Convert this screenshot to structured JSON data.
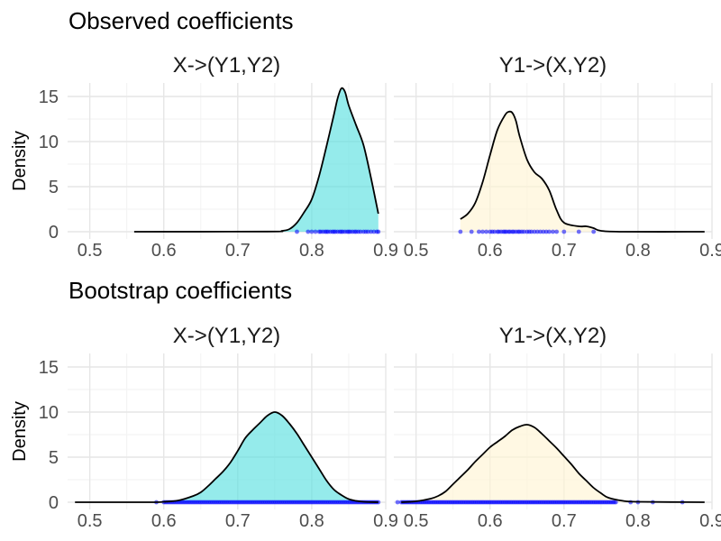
{
  "chart_data": [
    {
      "type": "area",
      "row_title": "Observed coefficients",
      "ylabel": "Density",
      "xlim": [
        0.47,
        0.9
      ],
      "ylim": [
        -0.8,
        16.5
      ],
      "x_ticks": [
        0.5,
        0.6,
        0.7,
        0.8,
        0.9
      ],
      "x_tick_labels": [
        "0.5",
        "0.6",
        "0.7",
        "0.8",
        "0.9"
      ],
      "y_ticks": [
        0,
        5,
        10,
        15
      ],
      "y_tick_labels": [
        "0",
        "5",
        "10",
        "15"
      ],
      "panels": [
        {
          "strip": "X->(Y1,Y2)",
          "fill": "#5ce0e0",
          "line_range": [
            0.56,
            0.89
          ],
          "fill_range": [
            0.76,
            0.89
          ],
          "x": [
            0.56,
            0.74,
            0.76,
            0.77,
            0.78,
            0.79,
            0.8,
            0.81,
            0.82,
            0.83,
            0.835,
            0.84,
            0.845,
            0.85,
            0.86,
            0.87,
            0.88,
            0.89
          ],
          "density": [
            0,
            0.02,
            0.1,
            0.3,
            1.0,
            2.2,
            3.6,
            6.2,
            9.5,
            13.0,
            14.8,
            15.9,
            15.5,
            14.0,
            11.8,
            9.6,
            6.0,
            2.0
          ],
          "rug": [
            0.78,
            0.795,
            0.8,
            0.805,
            0.81,
            0.812,
            0.815,
            0.818,
            0.82,
            0.822,
            0.825,
            0.828,
            0.83,
            0.832,
            0.835,
            0.838,
            0.84,
            0.842,
            0.845,
            0.848,
            0.85,
            0.852,
            0.855,
            0.858,
            0.86,
            0.863,
            0.866,
            0.87,
            0.873,
            0.876,
            0.88,
            0.884,
            0.888,
            0.89
          ]
        },
        {
          "strip": "Y1->(X,Y2)",
          "fill": "#fff5d4",
          "line_range": [
            0.56,
            0.89
          ],
          "fill_range": [
            0.56,
            0.74
          ],
          "x": [
            0.56,
            0.57,
            0.58,
            0.59,
            0.6,
            0.61,
            0.62,
            0.625,
            0.63,
            0.635,
            0.64,
            0.65,
            0.66,
            0.67,
            0.68,
            0.69,
            0.7,
            0.72,
            0.73,
            0.74,
            0.75,
            0.78,
            0.89
          ],
          "density": [
            1.4,
            2.0,
            3.2,
            5.5,
            8.5,
            11.3,
            12.9,
            13.3,
            13.2,
            12.3,
            10.6,
            8.0,
            6.6,
            5.9,
            4.6,
            2.4,
            1.0,
            0.6,
            0.6,
            0.4,
            0.1,
            0,
            0
          ],
          "rug": [
            0.56,
            0.575,
            0.585,
            0.59,
            0.595,
            0.6,
            0.603,
            0.606,
            0.61,
            0.612,
            0.615,
            0.618,
            0.62,
            0.622,
            0.625,
            0.627,
            0.63,
            0.632,
            0.635,
            0.638,
            0.64,
            0.643,
            0.646,
            0.65,
            0.653,
            0.656,
            0.66,
            0.664,
            0.668,
            0.672,
            0.676,
            0.68,
            0.685,
            0.69,
            0.7,
            0.72,
            0.74
          ]
        }
      ]
    },
    {
      "type": "area",
      "row_title": "Bootstrap coefficients",
      "ylabel": "Density",
      "xlim": [
        0.47,
        0.9
      ],
      "ylim": [
        -0.8,
        16.5
      ],
      "x_ticks": [
        0.5,
        0.6,
        0.7,
        0.8,
        0.9
      ],
      "x_tick_labels": [
        "0.5",
        "0.6",
        "0.7",
        "0.8",
        "0.9"
      ],
      "y_ticks": [
        0,
        5,
        10,
        15
      ],
      "y_tick_labels": [
        "0",
        "5",
        "10",
        "15"
      ],
      "panels": [
        {
          "strip": "X->(Y1,Y2)",
          "fill": "#5ce0e0",
          "line_range": [
            0.48,
            0.89
          ],
          "fill_range": [
            0.48,
            0.89
          ],
          "x": [
            0.48,
            0.58,
            0.6,
            0.62,
            0.64,
            0.65,
            0.66,
            0.67,
            0.68,
            0.69,
            0.7,
            0.71,
            0.72,
            0.73,
            0.74,
            0.75,
            0.76,
            0.77,
            0.78,
            0.79,
            0.8,
            0.81,
            0.82,
            0.83,
            0.84,
            0.85,
            0.86,
            0.87,
            0.89
          ],
          "density": [
            0,
            0,
            0.05,
            0.2,
            0.7,
            1.1,
            1.8,
            2.6,
            3.4,
            4.4,
            5.7,
            7.1,
            8.0,
            8.8,
            9.6,
            10.0,
            9.6,
            8.7,
            7.6,
            6.3,
            5.0,
            3.7,
            2.4,
            1.4,
            0.8,
            0.35,
            0.15,
            0.05,
            0
          ],
          "rug_from": 0.6,
          "rug_to": 0.89,
          "rug_count": 130,
          "rug_extra": [
            0.59
          ]
        },
        {
          "strip": "Y1->(X,Y2)",
          "fill": "#fff5d4",
          "line_range": [
            0.48,
            0.89
          ],
          "fill_range": [
            0.48,
            0.89
          ],
          "x": [
            0.48,
            0.5,
            0.52,
            0.53,
            0.54,
            0.55,
            0.56,
            0.57,
            0.58,
            0.59,
            0.6,
            0.61,
            0.62,
            0.63,
            0.64,
            0.65,
            0.66,
            0.67,
            0.68,
            0.69,
            0.7,
            0.71,
            0.72,
            0.73,
            0.74,
            0.75,
            0.76,
            0.78,
            0.8,
            0.89
          ],
          "density": [
            0,
            0.1,
            0.4,
            0.7,
            1.2,
            2.0,
            2.8,
            3.6,
            4.5,
            5.3,
            6.1,
            6.7,
            7.3,
            8.0,
            8.4,
            8.6,
            8.3,
            7.6,
            6.8,
            6.0,
            5.1,
            4.2,
            3.2,
            2.4,
            1.6,
            1.0,
            0.5,
            0.15,
            0.05,
            0
          ],
          "rug_from": 0.48,
          "rug_to": 0.77,
          "rug_count": 140,
          "rug_extra": [
            0.475,
            0.79,
            0.8,
            0.82,
            0.86
          ]
        }
      ]
    }
  ]
}
